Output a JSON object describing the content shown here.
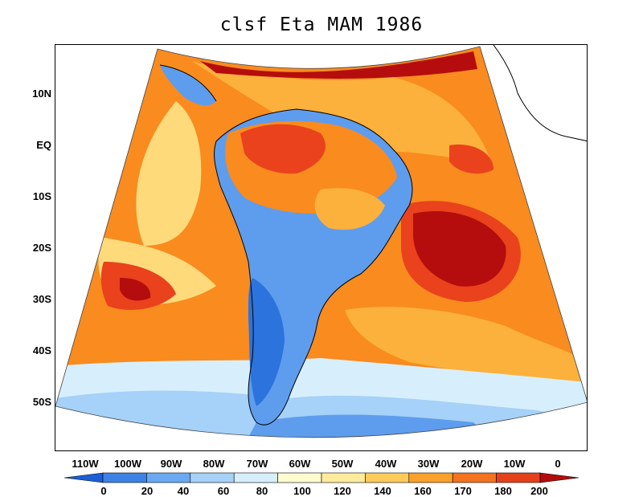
{
  "title": "clsf Eta MAM 1986",
  "colors": {
    "ocean_orange": "#f98b1f",
    "ocean_light": "#fcb13c",
    "ocean_red": "#e9421c",
    "ocean_dark": "#b50d0d",
    "ocean_yellow": "#feda7b",
    "land_blue": "#5e9ded",
    "land_light": "#a6d1f8",
    "land_dark": "#2c73dd",
    "pale": "#d7effc",
    "boundary": "#000000"
  },
  "map": {
    "lat_labels": [
      "10N",
      "EQ",
      "10S",
      "20S",
      "30S",
      "40S",
      "50S"
    ],
    "lon_labels": [
      "110W",
      "100W",
      "90W",
      "80W",
      "70W",
      "60W",
      "50W",
      "40W",
      "30W",
      "20W",
      "10W",
      "0"
    ]
  },
  "colorbar": {
    "ticks": [
      "0",
      "20",
      "40",
      "60",
      "80",
      "100",
      "120",
      "140",
      "160",
      "170",
      "180",
      "200"
    ],
    "bins": [
      "#1a5fd6",
      "#3c82e6",
      "#6aa9f2",
      "#a6d1f8",
      "#d7effc",
      "#fffcd0",
      "#feeb9b",
      "#fecb5a",
      "#f9a12b",
      "#f47320",
      "#e5411b",
      "#b50d0d"
    ]
  }
}
